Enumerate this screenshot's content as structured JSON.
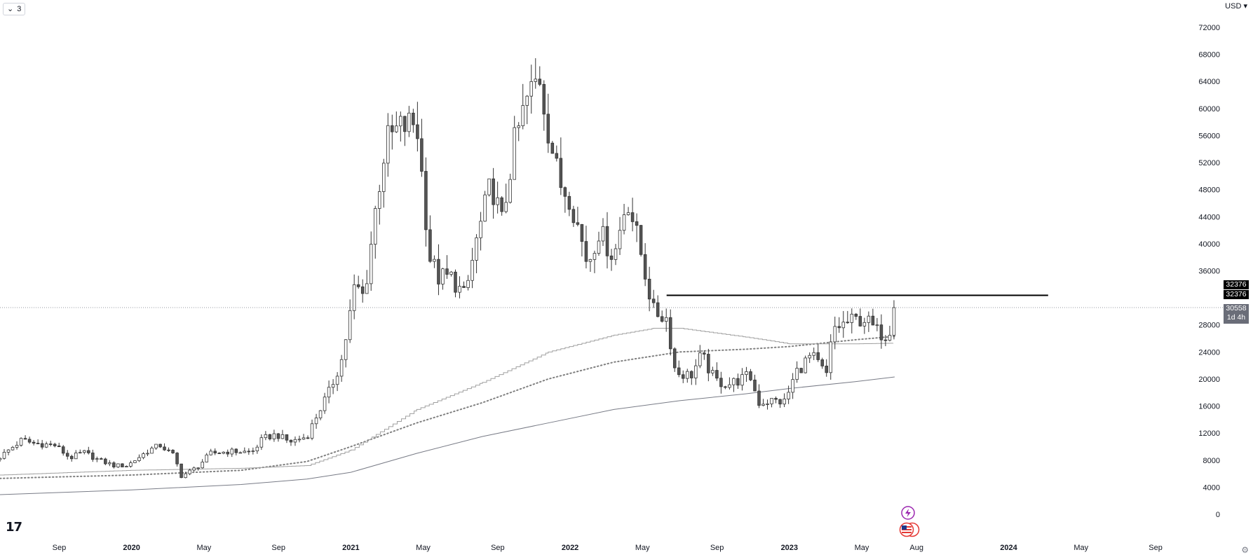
{
  "toolbar": {
    "collapse_count": "3",
    "currency": "USD"
  },
  "price_tags": {
    "level_a": "32376",
    "level_b": "32376",
    "last_price": "30558",
    "countdown": "1d 4h"
  },
  "colors": {
    "candle_up": "#ffffff",
    "candle_down": "#555555",
    "wick": "#333333",
    "ma_slow": "#787b86",
    "ma_mid": "#808080",
    "ma_fast": "#a0a0a0",
    "hline": "#000000",
    "last_price_line": "#9598a1"
  },
  "icons": {
    "event_icon": "lightning-icon",
    "flag_icon": "us-flag-icon",
    "settings_icon": "gear-icon",
    "brand": "tradingview-logo"
  },
  "chart_data": {
    "type": "candlestick",
    "interval": "weekly",
    "y_axis": {
      "ticks": [
        "72000",
        "68000",
        "64000",
        "60000",
        "56000",
        "52000",
        "48000",
        "44000",
        "40000",
        "36000",
        "28000",
        "24000",
        "20000",
        "16000",
        "12000",
        "8000",
        "4000",
        "0"
      ],
      "range": [
        -100,
        75000
      ],
      "scale": "linear"
    },
    "x_axis": {
      "ticks": [
        {
          "label": "Sep",
          "t": 2019.67
        },
        {
          "label": "2020",
          "t": 2020.0,
          "bold": true
        },
        {
          "label": "May",
          "t": 2020.33
        },
        {
          "label": "Sep",
          "t": 2020.67
        },
        {
          "label": "2021",
          "t": 2021.0,
          "bold": true
        },
        {
          "label": "May",
          "t": 2021.33
        },
        {
          "label": "Sep",
          "t": 2021.67
        },
        {
          "label": "2022",
          "t": 2022.0,
          "bold": true
        },
        {
          "label": "May",
          "t": 2022.33
        },
        {
          "label": "Sep",
          "t": 2022.67
        },
        {
          "label": "2023",
          "t": 2023.0,
          "bold": true
        },
        {
          "label": "May",
          "t": 2023.33
        },
        {
          "label": "Aug",
          "t": 2023.58
        },
        {
          "label": "2024",
          "t": 2024.0,
          "bold": true
        },
        {
          "label": "May",
          "t": 2024.33
        },
        {
          "label": "Sep",
          "t": 2024.67
        }
      ]
    },
    "last_price": 30558,
    "horizontal_line": {
      "price": 32376,
      "from": 2022.44,
      "to": 2024.18
    },
    "anchors": [
      {
        "t": 2019.4,
        "c": 8500
      },
      {
        "t": 2019.5,
        "c": 11000
      },
      {
        "t": 2019.55,
        "c": 10500
      },
      {
        "t": 2019.65,
        "c": 10200
      },
      {
        "t": 2019.72,
        "c": 8300
      },
      {
        "t": 2019.78,
        "c": 9200
      },
      {
        "t": 2019.85,
        "c": 8000
      },
      {
        "t": 2019.92,
        "c": 7200
      },
      {
        "t": 2019.98,
        "c": 7200
      },
      {
        "t": 2020.08,
        "c": 9500
      },
      {
        "t": 2020.13,
        "c": 10200
      },
      {
        "t": 2020.2,
        "c": 8500
      },
      {
        "t": 2020.22,
        "c": 5500
      },
      {
        "t": 2020.3,
        "c": 7000
      },
      {
        "t": 2020.36,
        "c": 9000
      },
      {
        "t": 2020.45,
        "c": 9300
      },
      {
        "t": 2020.55,
        "c": 9200
      },
      {
        "t": 2020.6,
        "c": 11200
      },
      {
        "t": 2020.66,
        "c": 11800
      },
      {
        "t": 2020.72,
        "c": 10700
      },
      {
        "t": 2020.8,
        "c": 11500
      },
      {
        "t": 2020.85,
        "c": 15000
      },
      {
        "t": 2020.9,
        "c": 18000
      },
      {
        "t": 2020.96,
        "c": 23000
      },
      {
        "t": 2021.02,
        "c": 34000
      },
      {
        "t": 2021.06,
        "c": 32000
      },
      {
        "t": 2021.12,
        "c": 47000
      },
      {
        "t": 2021.16,
        "c": 55000
      },
      {
        "t": 2021.22,
        "c": 57000
      },
      {
        "t": 2021.3,
        "c": 58000
      },
      {
        "t": 2021.36,
        "c": 38000
      },
      {
        "t": 2021.4,
        "c": 35000
      },
      {
        "t": 2021.46,
        "c": 35000
      },
      {
        "t": 2021.52,
        "c": 32000
      },
      {
        "t": 2021.57,
        "c": 40000
      },
      {
        "t": 2021.64,
        "c": 49000
      },
      {
        "t": 2021.69,
        "c": 43000
      },
      {
        "t": 2021.74,
        "c": 54000
      },
      {
        "t": 2021.8,
        "c": 61000
      },
      {
        "t": 2021.86,
        "c": 65000
      },
      {
        "t": 2021.9,
        "c": 57000
      },
      {
        "t": 2021.95,
        "c": 49000
      },
      {
        "t": 2022.0,
        "c": 47000
      },
      {
        "t": 2022.04,
        "c": 42000
      },
      {
        "t": 2022.08,
        "c": 37000
      },
      {
        "t": 2022.13,
        "c": 42000
      },
      {
        "t": 2022.2,
        "c": 38000
      },
      {
        "t": 2022.26,
        "c": 47000
      },
      {
        "t": 2022.32,
        "c": 39000
      },
      {
        "t": 2022.38,
        "c": 30000
      },
      {
        "t": 2022.44,
        "c": 29000
      },
      {
        "t": 2022.48,
        "c": 21000
      },
      {
        "t": 2022.55,
        "c": 20500
      },
      {
        "t": 2022.6,
        "c": 23500
      },
      {
        "t": 2022.66,
        "c": 19800
      },
      {
        "t": 2022.72,
        "c": 19200
      },
      {
        "t": 2022.82,
        "c": 20500
      },
      {
        "t": 2022.86,
        "c": 16500
      },
      {
        "t": 2022.92,
        "c": 16800
      },
      {
        "t": 2022.98,
        "c": 16600
      },
      {
        "t": 2023.03,
        "c": 21000
      },
      {
        "t": 2023.1,
        "c": 23500
      },
      {
        "t": 2023.17,
        "c": 20500
      },
      {
        "t": 2023.2,
        "c": 27500
      },
      {
        "t": 2023.28,
        "c": 28500
      },
      {
        "t": 2023.34,
        "c": 29000
      },
      {
        "t": 2023.4,
        "c": 27000
      },
      {
        "t": 2023.45,
        "c": 26500
      },
      {
        "t": 2023.48,
        "c": 30558
      }
    ],
    "moving_averages": [
      {
        "style": "dotted",
        "points": [
          [
            2019.4,
            5300
          ],
          [
            2020.0,
            5800
          ],
          [
            2020.5,
            6500
          ],
          [
            2020.8,
            7800
          ],
          [
            2021.0,
            10000
          ],
          [
            2021.3,
            13500
          ],
          [
            2021.6,
            16500
          ],
          [
            2021.9,
            20000
          ],
          [
            2022.2,
            22500
          ],
          [
            2022.5,
            24000
          ],
          [
            2022.8,
            24400
          ],
          [
            2023.0,
            24800
          ],
          [
            2023.3,
            25800
          ],
          [
            2023.48,
            26300
          ]
        ]
      },
      {
        "style": "step",
        "points": [
          [
            2019.4,
            5800
          ],
          [
            2020.0,
            6500
          ],
          [
            2020.5,
            6800
          ],
          [
            2020.8,
            7200
          ],
          [
            2021.0,
            9500
          ],
          [
            2021.3,
            15500
          ],
          [
            2021.6,
            19500
          ],
          [
            2021.9,
            24000
          ],
          [
            2022.2,
            26500
          ],
          [
            2022.38,
            27500
          ],
          [
            2022.5,
            27500
          ],
          [
            2022.8,
            26200
          ],
          [
            2023.0,
            25200
          ],
          [
            2023.3,
            25200
          ],
          [
            2023.48,
            25300
          ]
        ]
      },
      {
        "style": "solid",
        "points": [
          [
            2019.4,
            2900
          ],
          [
            2020.0,
            3600
          ],
          [
            2020.5,
            4400
          ],
          [
            2020.8,
            5200
          ],
          [
            2021.0,
            6200
          ],
          [
            2021.3,
            9000
          ],
          [
            2021.6,
            11500
          ],
          [
            2021.9,
            13500
          ],
          [
            2022.2,
            15500
          ],
          [
            2022.5,
            16800
          ],
          [
            2022.8,
            17800
          ],
          [
            2023.0,
            18600
          ],
          [
            2023.3,
            19600
          ],
          [
            2023.48,
            20300
          ]
        ]
      }
    ]
  }
}
